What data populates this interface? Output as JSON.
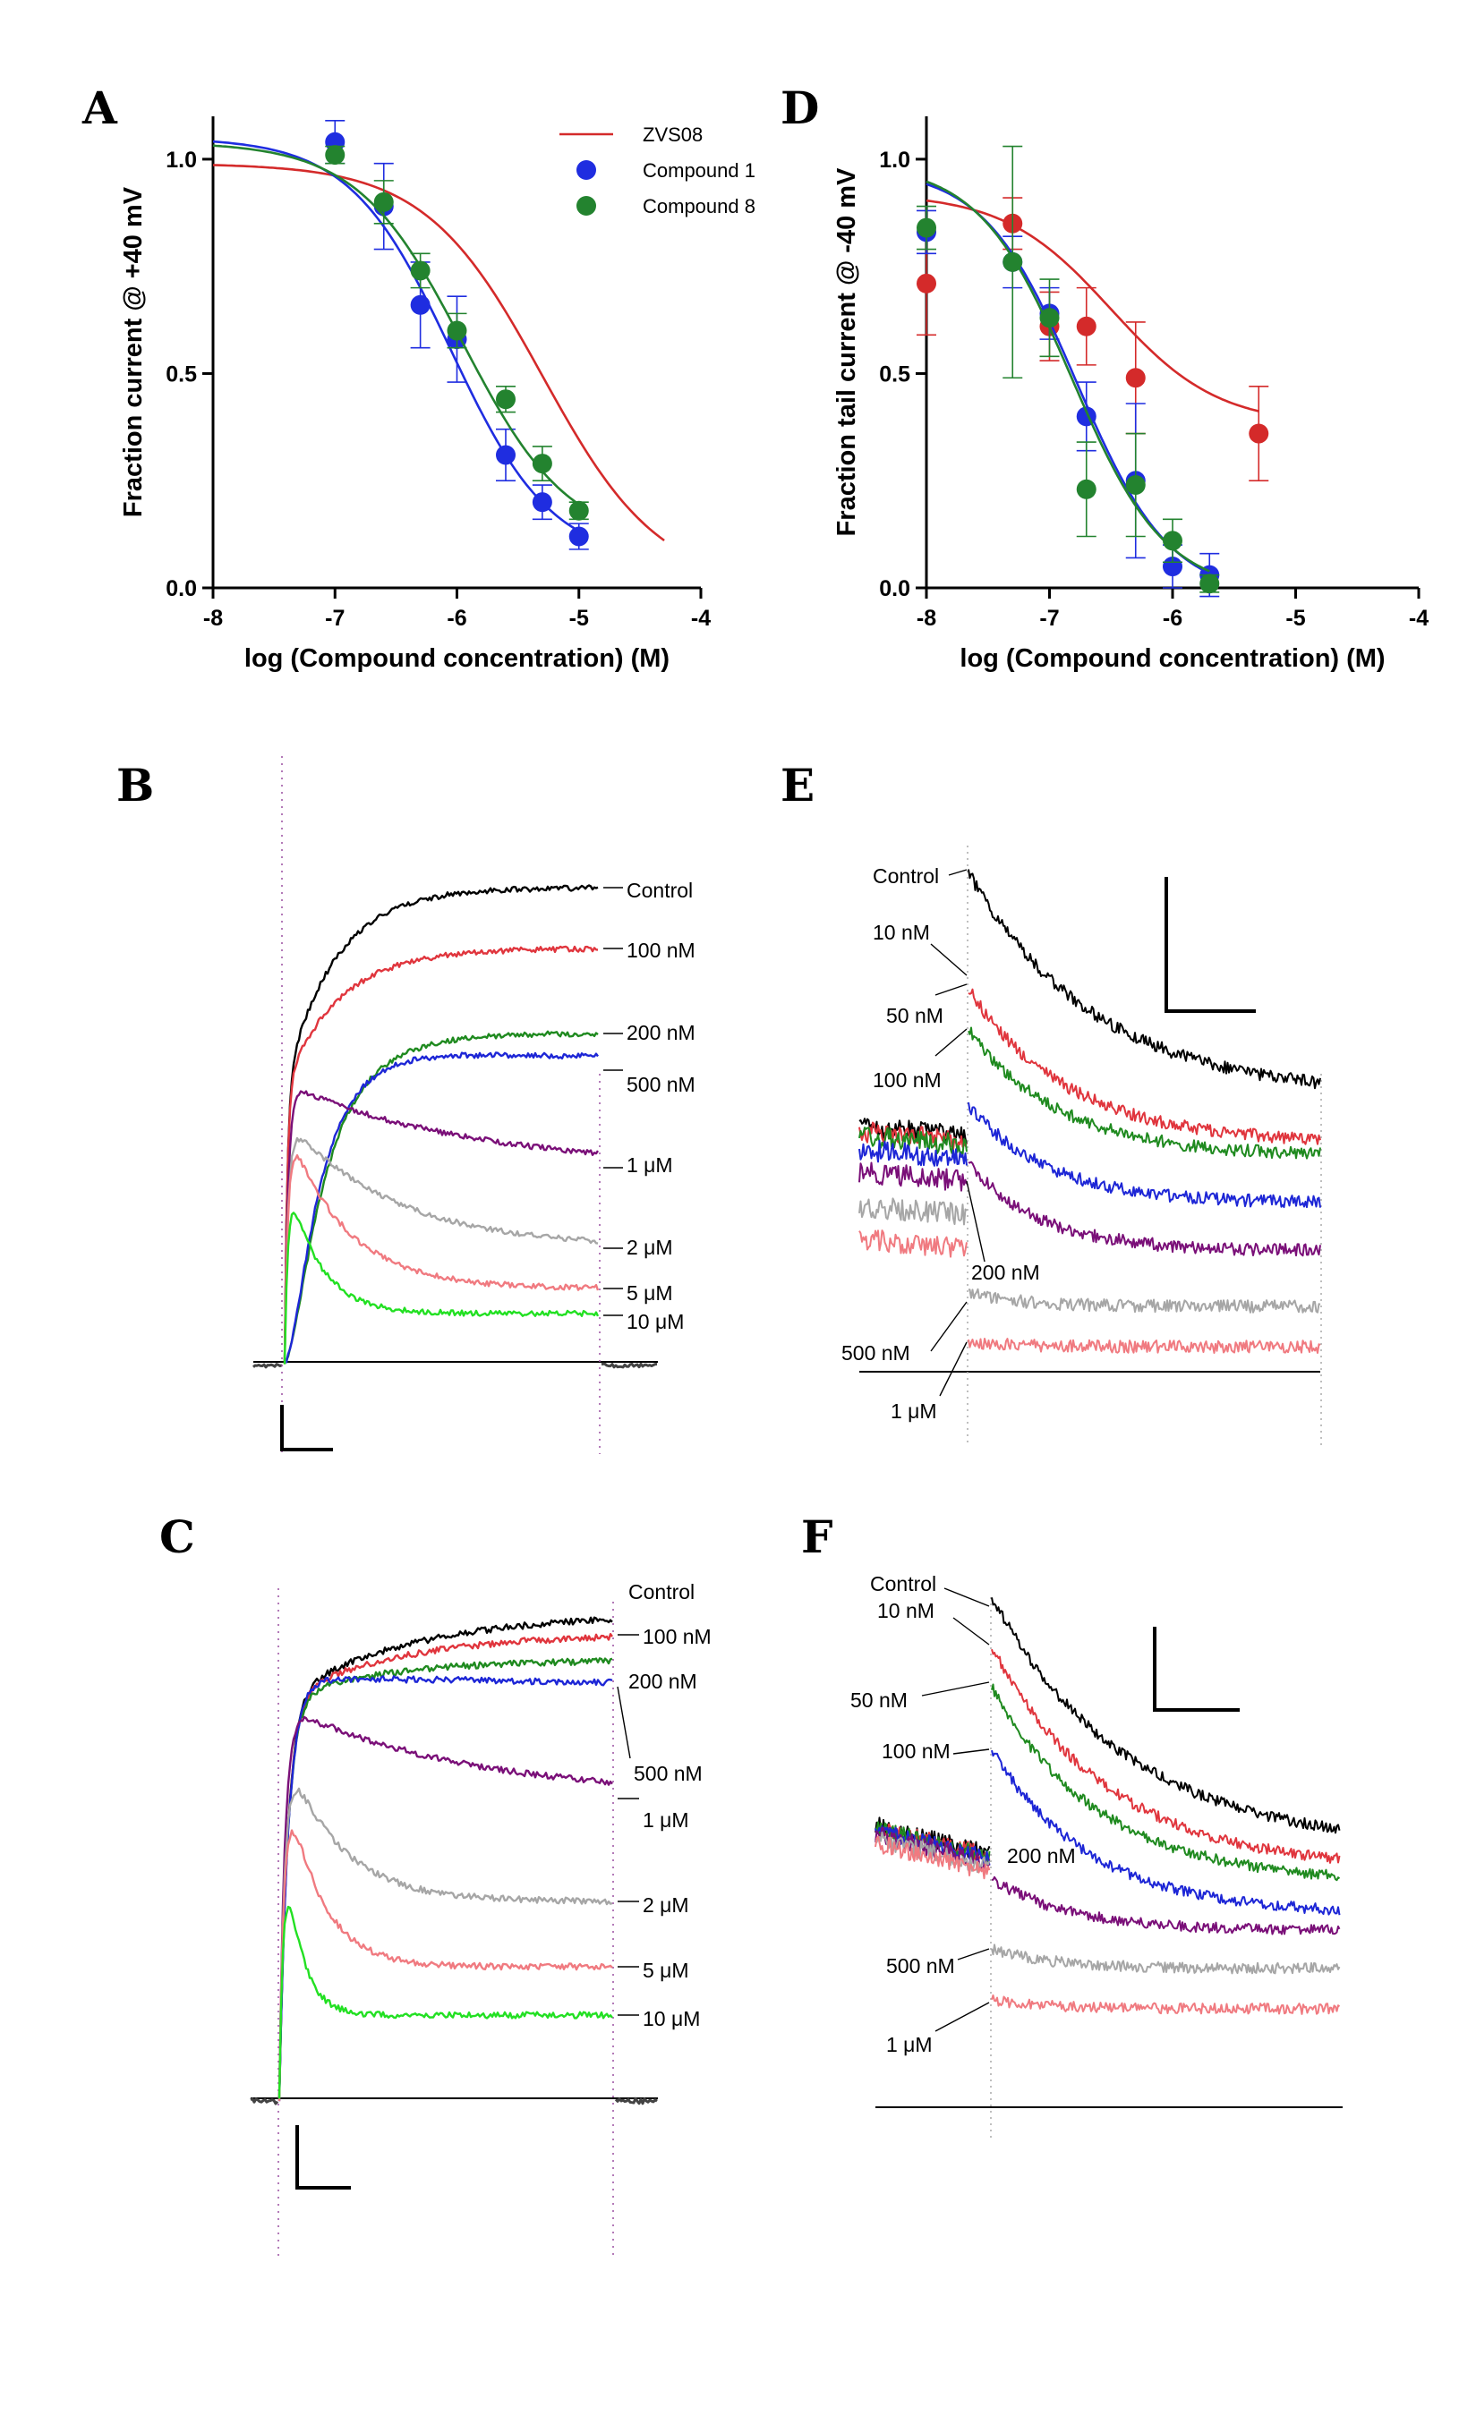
{
  "colors": {
    "zvs08": "#d42a2a",
    "compound1": "#1f2de0",
    "compound8": "#23832f",
    "black": "#000000",
    "red": "#e0353d",
    "green": "#1f8a1f",
    "blue": "#1d26d6",
    "purple": "#7a0f78",
    "gray": "#a6a6a6",
    "pink": "#f07a80",
    "lime": "#22e022"
  },
  "chart_data": [
    {
      "panel": "A",
      "type": "scatter",
      "xlabel": "log (Compound concentration) (M)",
      "ylabel": "Fraction current @ +40 mV",
      "xlim": [
        -8,
        -4
      ],
      "ylim": [
        0,
        1.1
      ],
      "xticks": [
        "-8",
        "-7",
        "-6",
        "-5",
        "-4"
      ],
      "yticks": [
        "0.0",
        "0.5",
        "1.0"
      ],
      "legend": [
        "ZVS08",
        "Compound 1",
        "Compound 8"
      ],
      "series": [
        {
          "name": "ZVS08",
          "kind": "fit",
          "top": 0.99,
          "bottom": 0.0,
          "logIC50": -5.3,
          "hill": 0.9,
          "xrange": [
            -8,
            -4.3
          ]
        },
        {
          "name": "Compound 1",
          "kind": "points+fit",
          "x": [
            -7,
            -6.6,
            -6.3,
            -6.0,
            -5.6,
            -5.3,
            -5.0
          ],
          "y": [
            1.04,
            0.89,
            0.66,
            0.58,
            0.31,
            0.2,
            0.12
          ],
          "err": [
            0.05,
            0.1,
            0.1,
            0.1,
            0.06,
            0.04,
            0.03
          ],
          "top": 1.05,
          "bottom": 0.06,
          "logIC50": -6.05,
          "hill": 1.05,
          "xrange": [
            -8,
            -5
          ]
        },
        {
          "name": "Compound 8",
          "kind": "points+fit",
          "x": [
            -7,
            -6.6,
            -6.3,
            -6.0,
            -5.6,
            -5.3,
            -5.0
          ],
          "y": [
            1.01,
            0.9,
            0.74,
            0.6,
            0.44,
            0.29,
            0.18
          ],
          "err": [
            0.02,
            0.05,
            0.04,
            0.04,
            0.03,
            0.04,
            0.02
          ],
          "top": 1.04,
          "bottom": 0.1,
          "logIC50": -5.95,
          "hill": 1.0,
          "xrange": [
            -8,
            -5
          ]
        }
      ]
    },
    {
      "panel": "D",
      "type": "scatter",
      "xlabel": "log (Compound concentration) (M)",
      "ylabel": "Fraction tail current @ -40 mV",
      "xlim": [
        -8,
        -4
      ],
      "ylim": [
        0,
        1.1
      ],
      "xticks": [
        "-8",
        "-7",
        "-6",
        "-5",
        "-4"
      ],
      "yticks": [
        "0.0",
        "0.5",
        "1.0"
      ],
      "series": [
        {
          "name": "ZVS08",
          "kind": "points+fit",
          "x": [
            -8,
            -7.3,
            -7.0,
            -6.7,
            -6.3,
            -5.3
          ],
          "y": [
            0.71,
            0.85,
            0.61,
            0.61,
            0.49,
            0.36
          ],
          "err": [
            0.12,
            0.06,
            0.08,
            0.09,
            0.13,
            0.11
          ],
          "top": 0.92,
          "bottom": 0.38,
          "logIC50": -6.5,
          "hill": 1.0,
          "xrange": [
            -8,
            -5.3
          ]
        },
        {
          "name": "Compound 1",
          "kind": "points+fit",
          "x": [
            -8,
            -7.3,
            -7.0,
            -6.7,
            -6.3,
            -6.0,
            -5.7
          ],
          "y": [
            0.83,
            0.76,
            0.64,
            0.4,
            0.25,
            0.05,
            0.03
          ],
          "err": [
            0.05,
            0.06,
            0.06,
            0.08,
            0.18,
            0.05,
            0.05
          ],
          "top": 0.98,
          "bottom": -0.02,
          "logIC50": -6.78,
          "hill": 1.15,
          "xrange": [
            -8,
            -5.7
          ]
        },
        {
          "name": "Compound 8",
          "kind": "points+fit",
          "x": [
            -8,
            -7.3,
            -7.0,
            -6.7,
            -6.3,
            -6.0,
            -5.7
          ],
          "y": [
            0.84,
            0.76,
            0.63,
            0.23,
            0.24,
            0.11,
            0.01
          ],
          "err": [
            0.05,
            0.27,
            0.09,
            0.11,
            0.12,
            0.05,
            0.02
          ],
          "top": 0.99,
          "bottom": -0.01,
          "logIC50": -6.82,
          "hill": 1.15,
          "xrange": [
            -8,
            -5.7
          ]
        }
      ]
    }
  ],
  "traces": {
    "B": [
      {
        "label": "Control",
        "color": "black"
      },
      {
        "label": "100 nM",
        "color": "red"
      },
      {
        "label": "200 nM",
        "color": "green"
      },
      {
        "label": "500 nM",
        "color": "blue"
      },
      {
        "label": "1 μM",
        "color": "purple"
      },
      {
        "label": "2 μM",
        "color": "gray"
      },
      {
        "label": "5 μM",
        "color": "pink"
      },
      {
        "label": "10 μM",
        "color": "lime"
      }
    ],
    "C": [
      {
        "label": "Control",
        "color": "black"
      },
      {
        "label": "100 nM",
        "color": "red"
      },
      {
        "label": "200 nM",
        "color": "green"
      },
      {
        "label": "500 nM",
        "color": "blue"
      },
      {
        "label": "1 μM",
        "color": "purple"
      },
      {
        "label": "2 μM",
        "color": "gray"
      },
      {
        "label": "5 μM",
        "color": "pink"
      },
      {
        "label": "10 μM",
        "color": "lime"
      }
    ],
    "E": [
      {
        "label": "Control",
        "color": "black"
      },
      {
        "label": "10 nM",
        "color": "red"
      },
      {
        "label": "50 nM",
        "color": "green"
      },
      {
        "label": "100 nM",
        "color": "blue"
      },
      {
        "label": "200 nM",
        "color": "purple"
      },
      {
        "label": "500 nM",
        "color": "gray"
      },
      {
        "label": "1 μM",
        "color": "pink"
      }
    ],
    "F": [
      {
        "label": "Control",
        "color": "black"
      },
      {
        "label": "10 nM",
        "color": "red"
      },
      {
        "label": "50 nM",
        "color": "green"
      },
      {
        "label": "100 nM",
        "color": "blue"
      },
      {
        "label": "200 nM",
        "color": "purple"
      },
      {
        "label": "500 nM",
        "color": "gray"
      },
      {
        "label": "1 μM",
        "color": "pink"
      }
    ]
  },
  "panels": {
    "A": "A",
    "B": "B",
    "C": "C",
    "D": "D",
    "E": "E",
    "F": "F"
  }
}
